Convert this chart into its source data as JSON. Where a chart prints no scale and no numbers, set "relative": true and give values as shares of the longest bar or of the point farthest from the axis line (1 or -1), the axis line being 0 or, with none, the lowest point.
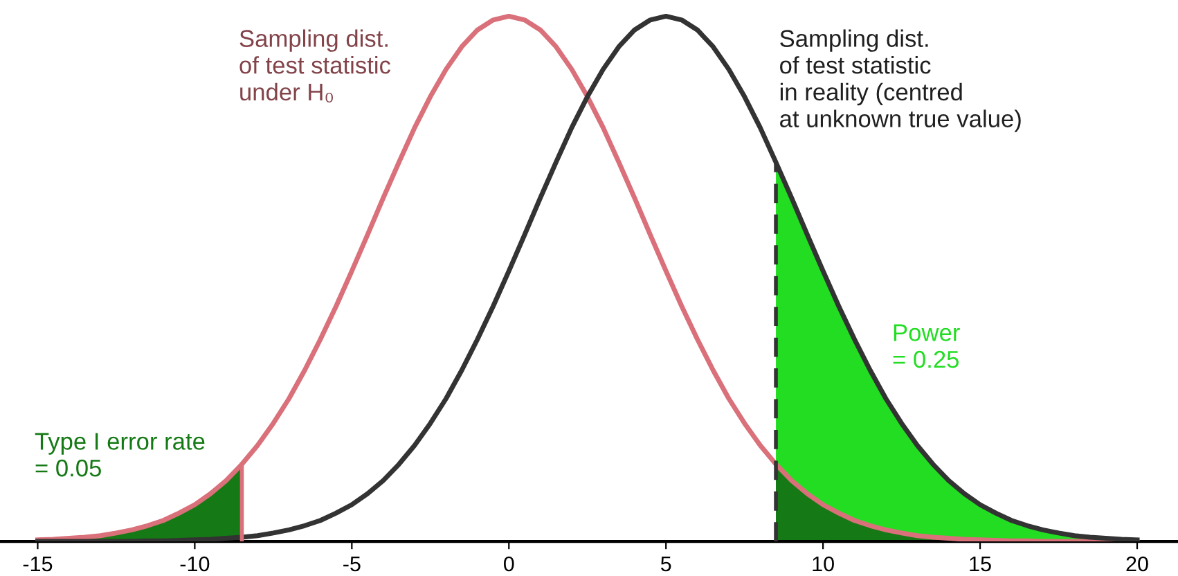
{
  "chart_data": {
    "type": "line",
    "relative": true,
    "x": [
      -15,
      -14.5,
      -14,
      -13.5,
      -13,
      -12.5,
      -12,
      -11.5,
      -11,
      -10.5,
      -10,
      -9.5,
      -9,
      -8.5,
      -8,
      -7.5,
      -7,
      -6.5,
      -6,
      -5.5,
      -5,
      -4.5,
      -4,
      -3.5,
      -3,
      -2.5,
      -2,
      -1.5,
      -1,
      -0.5,
      0,
      0.5,
      1,
      1.5,
      2,
      2.5,
      3,
      3.5,
      4,
      4.5,
      5,
      5.5,
      6,
      6.5,
      7,
      7.5,
      8,
      8.5,
      9,
      9.5,
      10,
      10.5,
      11,
      11.5,
      12,
      12.5,
      13,
      13.5,
      14,
      14.5,
      15,
      15.5,
      16,
      16.5,
      17,
      17.5,
      18,
      18.5,
      19,
      19.5,
      20
    ],
    "xlim": [
      -16.2,
      21.3
    ],
    "xticks": [
      -15,
      -10,
      -5,
      0,
      5,
      10,
      15,
      20
    ],
    "series": [
      {
        "name": "Sampling dist.\nof test statistic\nunder H₀",
        "color": "#d9707a",
        "values": [
          0.003,
          0.004,
          0.006,
          0.008,
          0.011,
          0.016,
          0.022,
          0.03,
          0.04,
          0.054,
          0.07,
          0.091,
          0.116,
          0.147,
          0.183,
          0.225,
          0.272,
          0.326,
          0.385,
          0.448,
          0.515,
          0.584,
          0.654,
          0.722,
          0.788,
          0.847,
          0.899,
          0.942,
          0.974,
          0.993,
          1,
          0.993,
          0.974,
          0.942,
          0.899,
          0.847,
          0.788,
          0.722,
          0.654,
          0.584,
          0.515,
          0.448,
          0.385,
          0.326,
          0.272,
          0.225,
          0.183,
          0.147,
          0.116,
          0.091,
          0.07,
          0.054,
          0.04,
          0.03,
          0.022,
          0.016,
          0.011,
          0.008,
          0.006,
          0.004,
          0.003,
          0.002,
          0.001,
          0.001,
          0,
          0,
          0,
          0,
          0,
          0,
          0
        ]
      },
      {
        "name": "Sampling dist.\nof test statistic\nin reality (centred\nat unknown true value)",
        "color": "#333333",
        "values": [
          0,
          0,
          0,
          0,
          0,
          0,
          0,
          0.001,
          0.001,
          0.002,
          0.003,
          0.004,
          0.006,
          0.008,
          0.011,
          0.016,
          0.022,
          0.03,
          0.04,
          0.054,
          0.07,
          0.091,
          0.116,
          0.147,
          0.183,
          0.225,
          0.272,
          0.326,
          0.385,
          0.448,
          0.515,
          0.584,
          0.654,
          0.722,
          0.788,
          0.847,
          0.899,
          0.942,
          0.974,
          0.993,
          1,
          0.993,
          0.974,
          0.942,
          0.899,
          0.847,
          0.788,
          0.722,
          0.654,
          0.584,
          0.515,
          0.448,
          0.385,
          0.326,
          0.272,
          0.225,
          0.183,
          0.147,
          0.116,
          0.091,
          0.07,
          0.054,
          0.04,
          0.03,
          0.022,
          0.016,
          0.011,
          0.008,
          0.006,
          0.004,
          0.003
        ]
      },
      {
        "type": "area",
        "name": "Power\n= 0.25",
        "color": "#22dd22",
        "x": [
          8.5,
          9,
          9.5,
          10,
          10.5,
          11,
          11.5,
          12,
          12.5,
          13,
          13.5,
          14,
          14.5,
          15,
          15.5,
          16,
          16.5,
          17,
          17.5,
          18,
          18.5,
          19,
          19.5,
          20
        ],
        "values": [
          0.722,
          0.654,
          0.584,
          0.515,
          0.448,
          0.385,
          0.326,
          0.272,
          0.225,
          0.183,
          0.147,
          0.116,
          0.091,
          0.07,
          0.054,
          0.04,
          0.03,
          0.022,
          0.016,
          0.011,
          0.008,
          0.006,
          0.004,
          0.003
        ]
      },
      {
        "type": "area",
        "color": "#157a15",
        "x": [
          8.5,
          9,
          9.5,
          10,
          10.5,
          11,
          11.5,
          12,
          12.5,
          13,
          13.5,
          14,
          14.5,
          15,
          15.5,
          16,
          16.5,
          17,
          17.5,
          18,
          18.5,
          19,
          19.5,
          20
        ],
        "values": [
          0.147,
          0.116,
          0.091,
          0.07,
          0.054,
          0.04,
          0.03,
          0.022,
          0.016,
          0.011,
          0.008,
          0.006,
          0.004,
          0.003,
          0.002,
          0.001,
          0.001,
          0,
          0,
          0,
          0,
          0,
          0,
          0
        ]
      },
      {
        "type": "area",
        "name": "Type I error rate\n= 0.05",
        "color": "#157a15",
        "x": [
          -15,
          -14.5,
          -14,
          -13.5,
          -13,
          -12.5,
          -12,
          -11.5,
          -11,
          -10.5,
          -10,
          -9.5,
          -9,
          -8.5
        ],
        "values": [
          0.003,
          0.004,
          0.006,
          0.008,
          0.011,
          0.016,
          0.022,
          0.03,
          0.04,
          0.054,
          0.07,
          0.091,
          0.116,
          0.147
        ]
      }
    ],
    "ref_lines": [
      {
        "axis": "x",
        "value": 8.5,
        "color": "#333333",
        "line_style": "dashed"
      },
      {
        "axis": "x",
        "value": -8.5,
        "color": "#d9707a",
        "line_style": "solid"
      }
    ]
  }
}
